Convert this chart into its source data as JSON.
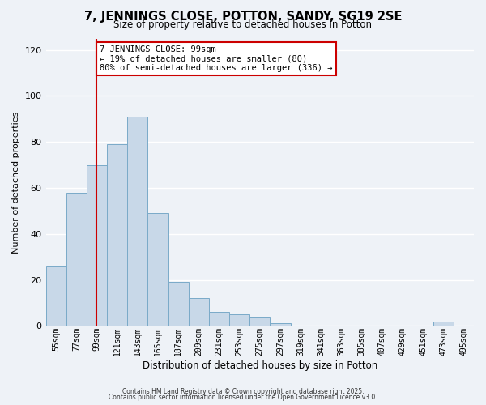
{
  "title": "7, JENNINGS CLOSE, POTTON, SANDY, SG19 2SE",
  "subtitle": "Size of property relative to detached houses in Potton",
  "xlabel": "Distribution of detached houses by size in Potton",
  "ylabel": "Number of detached properties",
  "bar_color": "#c8d8e8",
  "bar_edge_color": "#7aaac8",
  "background_color": "#eef2f7",
  "grid_color": "#ffffff",
  "categories": [
    "55sqm",
    "77sqm",
    "99sqm",
    "121sqm",
    "143sqm",
    "165sqm",
    "187sqm",
    "209sqm",
    "231sqm",
    "253sqm",
    "275sqm",
    "297sqm",
    "319sqm",
    "341sqm",
    "363sqm",
    "385sqm",
    "407sqm",
    "429sqm",
    "451sqm",
    "473sqm",
    "495sqm"
  ],
  "values": [
    26,
    58,
    70,
    79,
    91,
    49,
    19,
    12,
    6,
    5,
    4,
    1,
    0,
    0,
    0,
    0,
    0,
    0,
    0,
    2,
    0
  ],
  "ylim": [
    0,
    125
  ],
  "yticks": [
    0,
    20,
    40,
    60,
    80,
    100,
    120
  ],
  "vline_x_index": 2,
  "vline_color": "#cc0000",
  "annotation_title": "7 JENNINGS CLOSE: 99sqm",
  "annotation_line1": "← 19% of detached houses are smaller (80)",
  "annotation_line2": "80% of semi-detached houses are larger (336) →",
  "annotation_box_color": "#ffffff",
  "annotation_box_edge": "#cc0000",
  "footer1": "Contains HM Land Registry data © Crown copyright and database right 2025.",
  "footer2": "Contains public sector information licensed under the Open Government Licence v3.0."
}
